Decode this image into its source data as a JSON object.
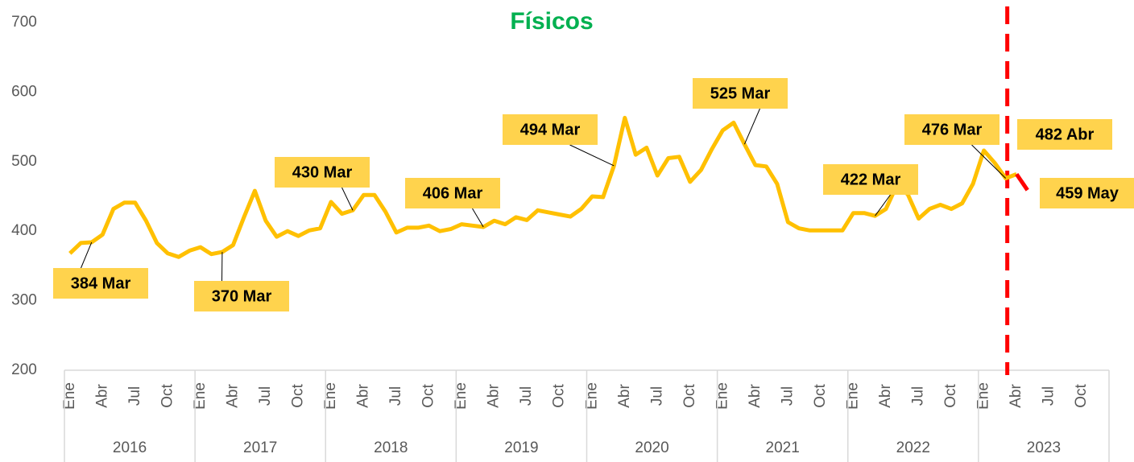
{
  "chart_data": {
    "type": "line",
    "title": "Físicos",
    "title_color": "#00b050",
    "categories": [
      "Ene",
      null,
      null,
      "Abr",
      null,
      null,
      "Jul",
      null,
      null,
      "Oct",
      null,
      null,
      "Ene",
      null,
      null,
      "Abr",
      null,
      null,
      "Jul",
      null,
      null,
      "Oct",
      null,
      null,
      "Ene",
      null,
      null,
      "Abr",
      null,
      null,
      "Jul",
      null,
      null,
      "Oct",
      null,
      null,
      "Ene",
      null,
      null,
      "Abr",
      null,
      null,
      "Jul",
      null,
      null,
      "Oct",
      null,
      null,
      "Ene",
      null,
      null,
      "Abr",
      null,
      null,
      "Jul",
      null,
      null,
      "Oct",
      null,
      null,
      "Ene",
      null,
      null,
      "Abr",
      null,
      null,
      "Jul",
      null,
      null,
      "Oct",
      null,
      null,
      "Ene",
      null,
      null,
      "Abr",
      null,
      null,
      "Jul",
      null,
      null,
      "Oct",
      null,
      null,
      "Ene",
      null,
      null,
      "Abr",
      null,
      null,
      "Jul",
      null,
      null,
      "Oct",
      null,
      null
    ],
    "years": [
      "2016",
      "2017",
      "2018",
      "2019",
      "2020",
      "2021",
      "2022",
      "2023"
    ],
    "series": [
      {
        "color": "#ffc000",
        "label_fill": "#ffd34d",
        "values": [
          368,
          383,
          384,
          395,
          432,
          441,
          441,
          415,
          383,
          368,
          363,
          372,
          377,
          367,
          370,
          380,
          420,
          458,
          415,
          392,
          400,
          393,
          401,
          404,
          442,
          425,
          430,
          452,
          452,
          428,
          398,
          405,
          405,
          408,
          400,
          403,
          410,
          408,
          406,
          415,
          410,
          420,
          416,
          430,
          427,
          424,
          421,
          432,
          450,
          449,
          494,
          563,
          510,
          520,
          480,
          505,
          507,
          471,
          488,
          518,
          545,
          556,
          525,
          495,
          493,
          468,
          413,
          404,
          401,
          401,
          401,
          401,
          426,
          426,
          422,
          432,
          466,
          453,
          418,
          432,
          438,
          432,
          440,
          468,
          516,
          498,
          476,
          482,
          null,
          null,
          null,
          null,
          null,
          null,
          null,
          null
        ],
        "value_labels": [
          null,
          null,
          "384 Mar",
          null,
          null,
          null,
          null,
          null,
          null,
          null,
          null,
          null,
          null,
          null,
          "370 Mar",
          null,
          null,
          null,
          null,
          null,
          null,
          null,
          null,
          null,
          null,
          null,
          "430 Mar",
          null,
          null,
          null,
          null,
          null,
          null,
          null,
          null,
          null,
          null,
          null,
          "406 Mar",
          null,
          null,
          null,
          null,
          null,
          null,
          null,
          null,
          null,
          null,
          null,
          "494 Mar",
          null,
          null,
          null,
          null,
          null,
          null,
          null,
          null,
          null,
          null,
          null,
          "525 Mar",
          null,
          null,
          null,
          null,
          null,
          null,
          null,
          null,
          null,
          null,
          null,
          "422 Mar",
          null,
          null,
          null,
          null,
          null,
          null,
          null,
          null,
          null,
          null,
          null,
          "476 Mar",
          null,
          null,
          null,
          null,
          null,
          null,
          null,
          null,
          null
        ]
      },
      {
        "color": "#ff0000",
        "label_fill": "#ffd34d",
        "values": [
          null,
          null,
          null,
          null,
          null,
          null,
          null,
          null,
          null,
          null,
          null,
          null,
          null,
          null,
          null,
          null,
          null,
          null,
          null,
          null,
          null,
          null,
          null,
          null,
          null,
          null,
          null,
          null,
          null,
          null,
          null,
          null,
          null,
          null,
          null,
          null,
          null,
          null,
          null,
          null,
          null,
          null,
          null,
          null,
          null,
          null,
          null,
          null,
          null,
          null,
          null,
          null,
          null,
          null,
          null,
          null,
          null,
          null,
          null,
          null,
          null,
          null,
          null,
          null,
          null,
          null,
          null,
          null,
          null,
          null,
          null,
          null,
          null,
          null,
          null,
          null,
          null,
          null,
          null,
          null,
          null,
          null,
          null,
          null,
          null,
          null,
          null,
          482,
          459,
          null,
          null,
          null,
          null,
          null,
          null,
          null
        ],
        "value_labels": [
          null,
          null,
          null,
          null,
          null,
          null,
          null,
          null,
          null,
          null,
          null,
          null,
          null,
          null,
          null,
          null,
          null,
          null,
          null,
          null,
          null,
          null,
          null,
          null,
          null,
          null,
          null,
          null,
          null,
          null,
          null,
          null,
          null,
          null,
          null,
          null,
          null,
          null,
          null,
          null,
          null,
          null,
          null,
          null,
          null,
          null,
          null,
          null,
          null,
          null,
          null,
          null,
          null,
          null,
          null,
          null,
          null,
          null,
          null,
          null,
          null,
          null,
          null,
          null,
          null,
          null,
          null,
          null,
          null,
          null,
          null,
          null,
          null,
          null,
          null,
          null,
          null,
          null,
          null,
          null,
          null,
          null,
          null,
          null,
          null,
          null,
          null,
          "482 Abr",
          "459 May",
          null,
          null,
          null,
          null,
          null,
          null,
          null
        ]
      }
    ],
    "ylim": [
      200,
      700
    ],
    "yticks": [
      200,
      300,
      400,
      500,
      600,
      700
    ],
    "grid": false
  }
}
